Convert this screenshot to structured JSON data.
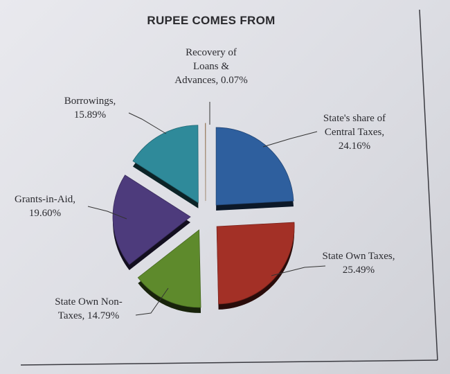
{
  "chart_data": {
    "type": "pie",
    "title": "RUPEE COMES FROM",
    "slices": [
      {
        "label_lines": [
          "State's share of",
          "Central Taxes,",
          "24.16%"
        ],
        "value": 24.16,
        "color": "#2e5f9e"
      },
      {
        "label_lines": [
          "State Own Taxes,",
          "25.49%"
        ],
        "value": 25.49,
        "color": "#a33026"
      },
      {
        "label_lines": [
          "State Own Non-",
          "Taxes, 14.79%"
        ],
        "value": 14.79,
        "color": "#5e8a2c"
      },
      {
        "label_lines": [
          "Grants-in-Aid,",
          "19.60%"
        ],
        "value": 19.6,
        "color": "#4d3b7c"
      },
      {
        "label_lines": [
          "Borrowings,",
          "15.89%"
        ],
        "value": 15.89,
        "color": "#2f8a9a"
      },
      {
        "label_lines": [
          "Recovery of",
          "Loans &",
          "Advances, 0.07%"
        ],
        "value": 0.07,
        "color": "#c9a27a"
      }
    ],
    "legend": "none"
  }
}
